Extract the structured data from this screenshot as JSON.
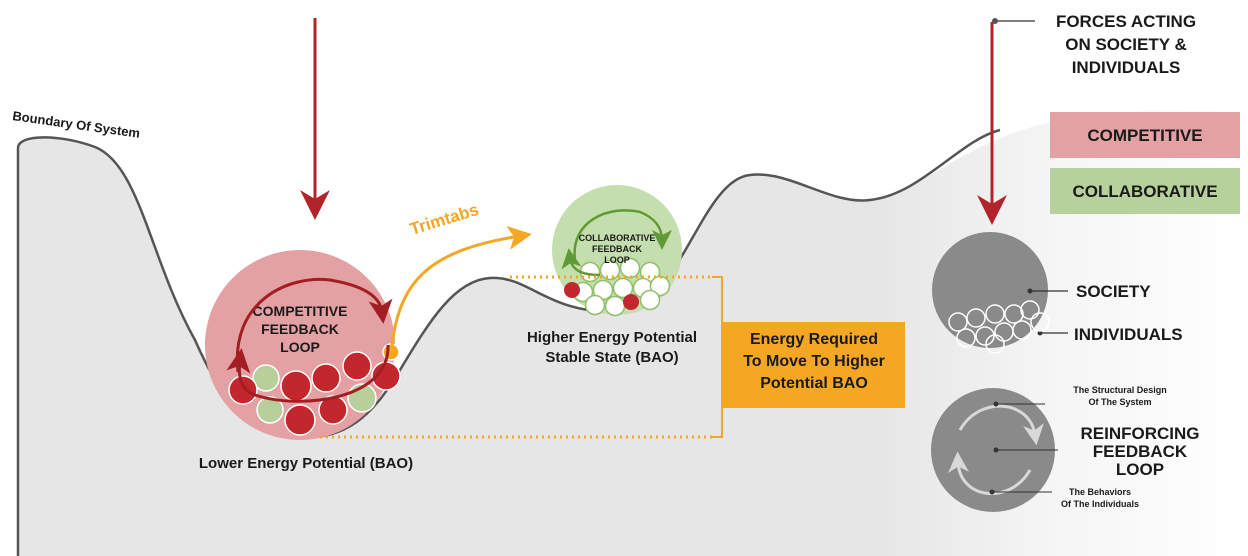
{
  "boundary_label": "Boundary Of System",
  "trimtabs_label": "Trimtabs",
  "competitive_loop": {
    "lines": [
      "COMPETITIVE",
      "FEEDBACK",
      "LOOP"
    ]
  },
  "collaborative_loop": {
    "lines": [
      "COLLABORATIVE",
      "FEEDBACK",
      "LOOP"
    ]
  },
  "lower_state": "Lower Energy Potential (BAO)",
  "higher_state": {
    "lines": [
      "Higher Energy Potential",
      "Stable State (BAO)"
    ]
  },
  "energy_box": {
    "lines": [
      "Energy Required",
      "To Move To Higher",
      "Potential BAO"
    ]
  },
  "forces": {
    "lines": [
      "FORCES ACTING",
      "ON SOCIETY &",
      "INDIVIDUALS"
    ]
  },
  "legend": [
    {
      "label": "COMPETITIVE",
      "color": "#e3a1a4"
    },
    {
      "label": "COLLABORATIVE",
      "color": "#b7d19c"
    }
  ],
  "society_key": {
    "society": "SOCIETY",
    "individuals": "INDIVIDUALS"
  },
  "loop_key": {
    "structural": [
      "The Structural Design",
      "Of The System"
    ],
    "title": [
      "REINFORCING",
      "FEEDBACK",
      "LOOP"
    ],
    "behaviors": [
      "The Behaviors",
      "Of The Individuals"
    ]
  }
}
